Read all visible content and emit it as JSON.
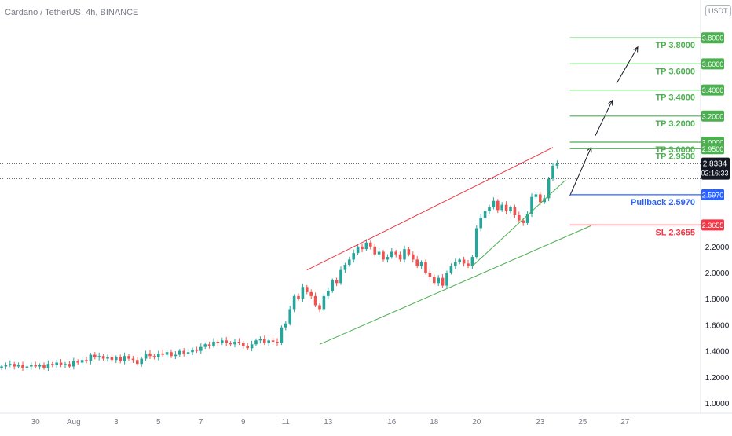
{
  "chart_data": {
    "type": "candlestick",
    "title": "Cardano / TetherUS, 4h, BINANCE",
    "currency": "USDT",
    "ylim": [
      0.9,
      4.05
    ],
    "y_ticks": [
      {
        "value": 1.0,
        "label": "1.0000"
      },
      {
        "value": 1.2,
        "label": "1.2000"
      },
      {
        "value": 1.4,
        "label": "1.4000"
      },
      {
        "value": 1.6,
        "label": "1.6000"
      },
      {
        "value": 1.8,
        "label": "1.8000"
      },
      {
        "value": 2.0,
        "label": "2.0000"
      },
      {
        "value": 2.2,
        "label": "2.2000"
      }
    ],
    "x_ticks": [
      {
        "index": 8,
        "label": "30"
      },
      {
        "index": 17,
        "label": "Aug"
      },
      {
        "index": 27,
        "label": "3"
      },
      {
        "index": 37,
        "label": "5"
      },
      {
        "index": 47,
        "label": "7"
      },
      {
        "index": 57,
        "label": "9"
      },
      {
        "index": 67,
        "label": "11"
      },
      {
        "index": 77,
        "label": "13"
      },
      {
        "index": 92,
        "label": "16"
      },
      {
        "index": 102,
        "label": "18"
      },
      {
        "index": 112,
        "label": "20"
      },
      {
        "index": 127,
        "label": "23"
      },
      {
        "index": 137,
        "label": "25"
      },
      {
        "index": 147,
        "label": "27"
      }
    ],
    "closes": [
      1.28,
      1.29,
      1.3,
      1.28,
      1.29,
      1.27,
      1.28,
      1.29,
      1.28,
      1.29,
      1.27,
      1.3,
      1.29,
      1.31,
      1.29,
      1.3,
      1.28,
      1.32,
      1.31,
      1.33,
      1.32,
      1.37,
      1.35,
      1.36,
      1.34,
      1.35,
      1.33,
      1.35,
      1.32,
      1.36,
      1.34,
      1.33,
      1.3,
      1.34,
      1.38,
      1.36,
      1.35,
      1.38,
      1.37,
      1.39,
      1.36,
      1.37,
      1.4,
      1.38,
      1.39,
      1.41,
      1.4,
      1.43,
      1.45,
      1.44,
      1.47,
      1.46,
      1.48,
      1.46,
      1.45,
      1.47,
      1.46,
      1.44,
      1.42,
      1.45,
      1.48,
      1.49,
      1.46,
      1.48,
      1.47,
      1.46,
      1.58,
      1.61,
      1.72,
      1.82,
      1.8,
      1.89,
      1.85,
      1.82,
      1.75,
      1.72,
      1.82,
      1.86,
      1.94,
      1.92,
      2.02,
      2.06,
      2.1,
      2.15,
      2.2,
      2.18,
      2.23,
      2.2,
      2.14,
      2.16,
      2.1,
      2.12,
      2.16,
      2.14,
      2.1,
      2.18,
      2.14,
      2.1,
      2.05,
      2.08,
      2.0,
      1.97,
      1.92,
      1.96,
      1.9,
      2.0,
      2.05,
      2.08,
      2.1,
      2.07,
      2.05,
      2.12,
      2.34,
      2.42,
      2.47,
      2.5,
      2.55,
      2.48,
      2.52,
      2.47,
      2.5,
      2.44,
      2.4,
      2.38,
      2.45,
      2.58,
      2.6,
      2.54,
      2.57,
      2.72,
      2.82,
      2.8334
    ],
    "current_price": {
      "value": 2.8334,
      "label": "2.8334",
      "countdown": "02:16:33"
    },
    "reference_price": 2.72,
    "levels": [
      {
        "value": 3.8,
        "label": "3.8000",
        "text": "TP 3.8000",
        "color": "#4caf50"
      },
      {
        "value": 3.6,
        "label": "3.6000",
        "text": "TP 3.6000",
        "color": "#4caf50"
      },
      {
        "value": 3.4,
        "label": "3.4000",
        "text": "TP 3.4000",
        "color": "#4caf50"
      },
      {
        "value": 3.2,
        "label": "3.2000",
        "text": "TP 3.2000",
        "color": "#4caf50"
      },
      {
        "value": 3.0,
        "label": "3.0000",
        "text": "TP 3.0000",
        "color": "#4caf50"
      },
      {
        "value": 2.95,
        "label": "2.9500",
        "text": "TP 2.9500",
        "color": "#4caf50"
      },
      {
        "value": 2.597,
        "label": "2.5970",
        "text": "Pullback 2.5970",
        "color": "#2962ff"
      },
      {
        "value": 2.3655,
        "label": "2.3655",
        "text": "SL 2.3655",
        "color": "#f23645"
      }
    ],
    "trendlines": [
      {
        "from": [
          72,
          2.02
        ],
        "to": [
          130,
          2.96
        ],
        "color": "#f23645"
      },
      {
        "from": [
          75,
          1.45
        ],
        "to": [
          139,
          2.36
        ],
        "color": "#4caf50"
      },
      {
        "from": [
          111,
          2.05
        ],
        "to": [
          133,
          2.71
        ],
        "color": "#4caf50"
      }
    ],
    "arrows": [
      {
        "from": [
          134,
          2.59
        ],
        "to": [
          139,
          2.96
        ]
      },
      {
        "from": [
          140,
          3.05
        ],
        "to": [
          144,
          3.32
        ]
      },
      {
        "from": [
          145,
          3.45
        ],
        "to": [
          150,
          3.73
        ]
      }
    ],
    "colors": {
      "up": "#26a69a",
      "down": "#ef5350",
      "axis_text": "#131722",
      "muted": "#787b86"
    }
  }
}
